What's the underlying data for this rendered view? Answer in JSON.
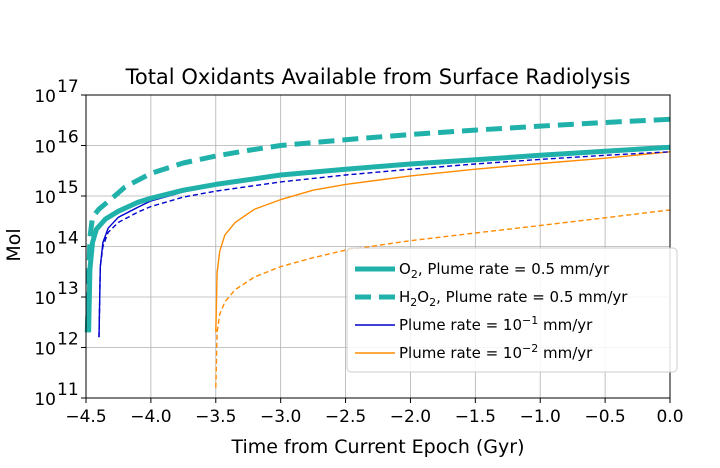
{
  "chart_data": {
    "type": "line",
    "title": "Total Oxidants Available from Surface Radiolysis",
    "xlabel": "Time from Current Epoch (Gyr)",
    "ylabel": "Mol",
    "xlim": [
      -4.5,
      0.0
    ],
    "ylim": [
      100000000000.0,
      1e+17
    ],
    "yscale": "log",
    "grid": true,
    "legend_position": "lower-right",
    "x_ticks": [
      {
        "value": -4.5,
        "label": "−4.5"
      },
      {
        "value": -4.0,
        "label": "−4.0"
      },
      {
        "value": -3.5,
        "label": "−3.5"
      },
      {
        "value": -3.0,
        "label": "−3.0"
      },
      {
        "value": -2.5,
        "label": "−2.5"
      },
      {
        "value": -2.0,
        "label": "−2.0"
      },
      {
        "value": -1.5,
        "label": "−1.5"
      },
      {
        "value": -1.0,
        "label": "−1.0"
      },
      {
        "value": -0.5,
        "label": "−0.5"
      },
      {
        "value": 0.0,
        "label": "0.0"
      }
    ],
    "y_ticks": [
      {
        "value": 100000000000.0,
        "base": "10",
        "exp": "11"
      },
      {
        "value": 1000000000000.0,
        "base": "10",
        "exp": "12"
      },
      {
        "value": 10000000000000.0,
        "base": "10",
        "exp": "13"
      },
      {
        "value": 100000000000000.0,
        "base": "10",
        "exp": "14"
      },
      {
        "value": 1000000000000000.0,
        "base": "10",
        "exp": "15"
      },
      {
        "value": 1e+16,
        "base": "10",
        "exp": "16"
      },
      {
        "value": 1e+17,
        "base": "10",
        "exp": "17"
      }
    ],
    "series": [
      {
        "key": "o2_05",
        "color": "#20b2aa",
        "dash": "solid",
        "weight": "thick",
        "points": [
          [
            -4.48,
            2000000000000.0
          ],
          [
            -4.47,
            35000000000000.0
          ],
          [
            -4.45,
            120000000000000.0
          ],
          [
            -4.42,
            220000000000000.0
          ],
          [
            -4.35,
            350000000000000.0
          ],
          [
            -4.25,
            500000000000000.0
          ],
          [
            -4.1,
            750000000000000.0
          ],
          [
            -4.0,
            900000000000000.0
          ],
          [
            -3.75,
            1300000000000000.0
          ],
          [
            -3.5,
            1700000000000000.0
          ],
          [
            -3.0,
            2600000000000000.0
          ],
          [
            -2.5,
            3400000000000000.0
          ],
          [
            -2.0,
            4300000000000000.0
          ],
          [
            -1.5,
            5200000000000000.0
          ],
          [
            -1.0,
            6400000000000000.0
          ],
          [
            -0.5,
            7700000000000000.0
          ],
          [
            0.0,
            9200000000000000.0
          ]
        ]
      },
      {
        "key": "h2o2_05",
        "color": "#20b2aa",
        "dash": "dashed",
        "weight": "thick",
        "points": [
          [
            -4.49,
            2000000000000.0
          ],
          [
            -4.47,
            150000000000000.0
          ],
          [
            -4.45,
            380000000000000.0
          ],
          [
            -4.4,
            550000000000000.0
          ],
          [
            -4.3,
            900000000000000.0
          ],
          [
            -4.2,
            1500000000000000.0
          ],
          [
            -4.0,
            2800000000000000.0
          ],
          [
            -3.75,
            4500000000000000.0
          ],
          [
            -3.5,
            6200000000000000.0
          ],
          [
            -3.25,
            8000000000000000.0
          ],
          [
            -3.0,
            1e+16
          ],
          [
            -2.5,
            1.3e+16
          ],
          [
            -2.0,
            1.65e+16
          ],
          [
            -1.5,
            2.02e+16
          ],
          [
            -1.0,
            2.42e+16
          ],
          [
            -0.5,
            2.85e+16
          ],
          [
            0.0,
            3.3e+16
          ]
        ]
      },
      {
        "key": "o2_01",
        "color": "#0000cd",
        "dash": "solid",
        "weight": "thin",
        "points": [
          [
            -4.4,
            1600000000000.0
          ],
          [
            -4.39,
            40000000000000.0
          ],
          [
            -4.37,
            120000000000000.0
          ],
          [
            -4.33,
            230000000000000.0
          ],
          [
            -4.25,
            380000000000000.0
          ],
          [
            -4.1,
            600000000000000.0
          ],
          [
            -4.0,
            800000000000000.0
          ],
          [
            -3.75,
            1200000000000000.0
          ],
          [
            -3.5,
            1600000000000000.0
          ],
          [
            -3.0,
            2500000000000000.0
          ],
          [
            -2.5,
            3300000000000000.0
          ],
          [
            -2.0,
            4200000000000000.0
          ],
          [
            -1.5,
            5100000000000000.0
          ],
          [
            -1.0,
            6300000000000000.0
          ],
          [
            -0.5,
            7800000000000000.0
          ],
          [
            0.0,
            9500000000000000.0
          ]
        ]
      },
      {
        "key": "h2o2_01",
        "color": "#0000cd",
        "dash": "dashed",
        "weight": "thin",
        "points": [
          [
            -4.4,
            1600000000000.0
          ],
          [
            -4.39,
            40000000000000.0
          ],
          [
            -4.37,
            100000000000000.0
          ],
          [
            -4.33,
            190000000000000.0
          ],
          [
            -4.25,
            300000000000000.0
          ],
          [
            -4.1,
            480000000000000.0
          ],
          [
            -4.0,
            620000000000000.0
          ],
          [
            -3.75,
            950000000000000.0
          ],
          [
            -3.5,
            1250000000000000.0
          ],
          [
            -3.0,
            1900000000000000.0
          ],
          [
            -2.5,
            2600000000000000.0
          ],
          [
            -2.0,
            3400000000000000.0
          ],
          [
            -1.5,
            4300000000000000.0
          ],
          [
            -1.0,
            5300000000000000.0
          ],
          [
            -0.5,
            6400000000000000.0
          ],
          [
            0.0,
            7500000000000000.0
          ]
        ]
      },
      {
        "key": "o2_001",
        "color": "#ff8c00",
        "dash": "solid",
        "weight": "thin",
        "points": [
          [
            -3.5,
            2000000000000.0
          ],
          [
            -3.49,
            30000000000000.0
          ],
          [
            -3.47,
            80000000000000.0
          ],
          [
            -3.43,
            170000000000000.0
          ],
          [
            -3.35,
            300000000000000.0
          ],
          [
            -3.2,
            550000000000000.0
          ],
          [
            -3.0,
            850000000000000.0
          ],
          [
            -2.75,
            1300000000000000.0
          ],
          [
            -2.5,
            1700000000000000.0
          ],
          [
            -2.0,
            2500000000000000.0
          ],
          [
            -1.5,
            3400000000000000.0
          ],
          [
            -1.0,
            4400000000000000.0
          ],
          [
            -0.5,
            5600000000000000.0
          ],
          [
            0.0,
            7500000000000000.0
          ]
        ]
      },
      {
        "key": "h2o2_001",
        "color": "#ff8c00",
        "dash": "dashed",
        "weight": "thin",
        "points": [
          [
            -3.5,
            160000000000.0
          ],
          [
            -3.49,
            2000000000000.0
          ],
          [
            -3.47,
            4500000000000.0
          ],
          [
            -3.43,
            8000000000000.0
          ],
          [
            -3.35,
            14000000000000.0
          ],
          [
            -3.2,
            25000000000000.0
          ],
          [
            -3.0,
            40000000000000.0
          ],
          [
            -2.75,
            60000000000000.0
          ],
          [
            -2.5,
            85000000000000.0
          ],
          [
            -2.0,
            130000000000000.0
          ],
          [
            -1.5,
            185000000000000.0
          ],
          [
            -1.0,
            260000000000000.0
          ],
          [
            -0.5,
            370000000000000.0
          ],
          [
            0.0,
            530000000000000.0
          ]
        ]
      }
    ],
    "legend": [
      {
        "series": "o2_05",
        "pre": "O",
        "sub1": "2",
        "mid": "",
        "sub2": "",
        "post": ", Plume rate = 0.5 mm/yr",
        "sup": "",
        "tail": ""
      },
      {
        "series": "h2o2_05",
        "pre": "H",
        "sub1": "2",
        "mid": "O",
        "sub2": "2",
        "post": ", Plume rate = 0.5 mm/yr",
        "sup": "",
        "tail": ""
      },
      {
        "series": "o2_01",
        "pre": "Plume rate = 10",
        "sub1": "",
        "mid": "",
        "sub2": "",
        "post": "",
        "sup": "−1",
        "tail": " mm/yr"
      },
      {
        "series": "o2_001",
        "pre": "Plume rate = 10",
        "sub1": "",
        "mid": "",
        "sub2": "",
        "post": "",
        "sup": "−2",
        "tail": " mm/yr"
      }
    ]
  }
}
